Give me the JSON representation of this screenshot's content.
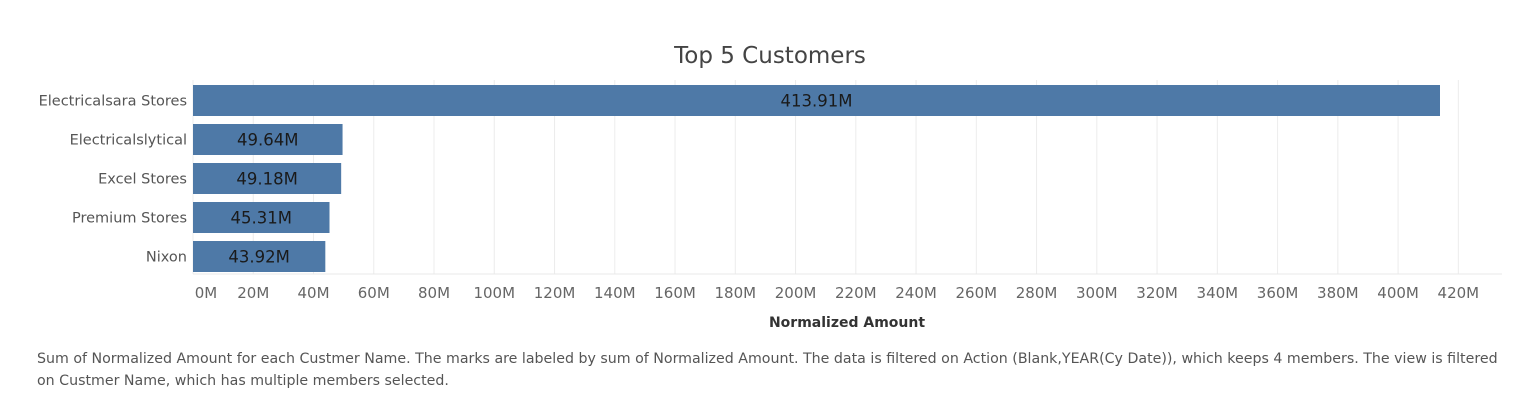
{
  "chart_data": {
    "type": "bar",
    "orientation": "horizontal",
    "title": "Top 5 Customers",
    "xlabel": "Normalized Amount",
    "ylabel": "",
    "categories": [
      "Electricalsara Stores",
      "Electricalslytical",
      "Excel Stores",
      "Premium Stores",
      "Nixon"
    ],
    "values": [
      413.91,
      49.64,
      49.18,
      45.31,
      43.92
    ],
    "data_labels": [
      "413.91M",
      "49.64M",
      "49.18M",
      "45.31M",
      "43.92M"
    ],
    "unit": "M",
    "xlim": [
      0,
      420
    ],
    "tick_step": 20,
    "tick_labels": [
      "0M",
      "20M",
      "40M",
      "60M",
      "80M",
      "100M",
      "120M",
      "140M",
      "160M",
      "180M",
      "200M",
      "220M",
      "240M",
      "260M",
      "280M",
      "300M",
      "320M",
      "340M",
      "360M",
      "380M",
      "400M",
      "420M"
    ],
    "grid": "vertical",
    "legend": "none",
    "bar_color": "#4e79a7"
  },
  "caption": "Sum of Normalized Amount for each Custmer Name.  The marks are labeled by sum of Normalized Amount. The data is filtered on Action (Blank,YEAR(Cy Date)), which keeps 4 members. The view is filtered on Custmer Name, which has multiple members selected."
}
